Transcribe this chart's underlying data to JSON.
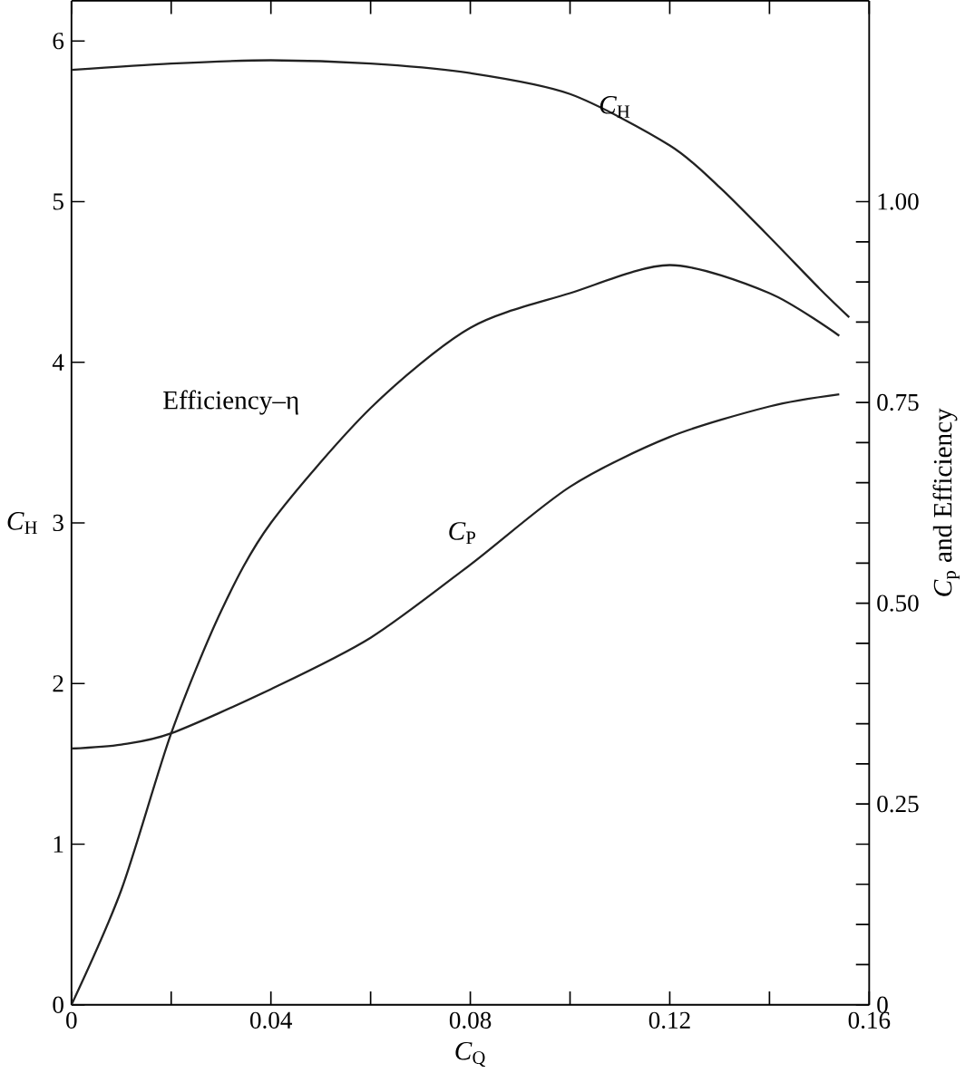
{
  "chart_data": {
    "type": "line",
    "xlabel": "*C*$_{Q}$",
    "ylabel": "*C*$_{H}$",
    "y2label": "*C*$_{p}$ and Efficiency",
    "xlim": [
      0,
      0.16
    ],
    "xticks": [
      0,
      {
        "value": 0.02,
        "label": null
      },
      0.04,
      {
        "value": 0.06,
        "label": null
      },
      0.08,
      {
        "value": 0.1,
        "label": null
      },
      0.12,
      {
        "value": 0.14,
        "label": null
      },
      0.16
    ],
    "ylim": [
      0,
      6.25
    ],
    "yticks": [
      0,
      1,
      2,
      3,
      4,
      5,
      6
    ],
    "y2lim": [
      0,
      1.25
    ],
    "y2ticks": [
      0,
      {
        "value": 0.05,
        "label": null
      },
      {
        "value": 0.1,
        "label": null
      },
      {
        "value": 0.15,
        "label": null
      },
      {
        "value": 0.2,
        "label": null
      },
      {
        "value": 0.25,
        "label": "0.25"
      },
      {
        "value": 0.3,
        "label": null
      },
      {
        "value": 0.35,
        "label": null
      },
      {
        "value": 0.4,
        "label": null
      },
      {
        "value": 0.45,
        "label": null
      },
      {
        "value": 0.5,
        "label": "0.50"
      },
      {
        "value": 0.55,
        "label": null
      },
      {
        "value": 0.6,
        "label": null
      },
      {
        "value": 0.65,
        "label": null
      },
      {
        "value": 0.7,
        "label": null
      },
      {
        "value": 0.75,
        "label": "0.75"
      },
      {
        "value": 0.8,
        "label": null
      },
      {
        "value": 0.85,
        "label": null
      },
      {
        "value": 0.9,
        "label": null
      },
      {
        "value": 0.95,
        "label": null
      },
      {
        "value": 1.0,
        "label": "1.00"
      }
    ],
    "line_style": "solid",
    "series": [
      {
        "color": "#222222",
        "x": [
          0,
          0.02,
          0.04,
          0.06,
          0.08,
          0.1,
          0.12,
          0.13,
          0.14,
          0.15,
          0.156
        ],
        "values": [
          5.82,
          5.86,
          5.88,
          5.86,
          5.8,
          5.67,
          5.35,
          5.09,
          4.78,
          4.46,
          4.28
        ]
      },
      {
        "color": "#222222",
        "axis": "y2",
        "x": [
          0,
          0.01,
          0.02,
          0.03,
          0.04,
          0.06,
          0.08,
          0.1,
          0.12,
          0.14,
          0.154
        ],
        "values": [
          0,
          0.143,
          0.338,
          0.49,
          0.6,
          0.743,
          0.843,
          0.886,
          0.921,
          0.886,
          0.833
        ]
      },
      {
        "color": "#222222",
        "axis": "y2",
        "x": [
          0,
          0.01,
          0.02,
          0.04,
          0.06,
          0.08,
          0.1,
          0.12,
          0.14,
          0.154
        ],
        "values": [
          0.319,
          0.324,
          0.338,
          0.393,
          0.457,
          0.548,
          0.645,
          0.707,
          0.745,
          0.76
        ]
      }
    ],
    "annotations": [
      {
        "text": "*C*$_{H}$",
        "x": 0.109,
        "y": 5.59
      },
      "Efficiency–η",
      "*C*$_{P}$"
    ]
  }
}
